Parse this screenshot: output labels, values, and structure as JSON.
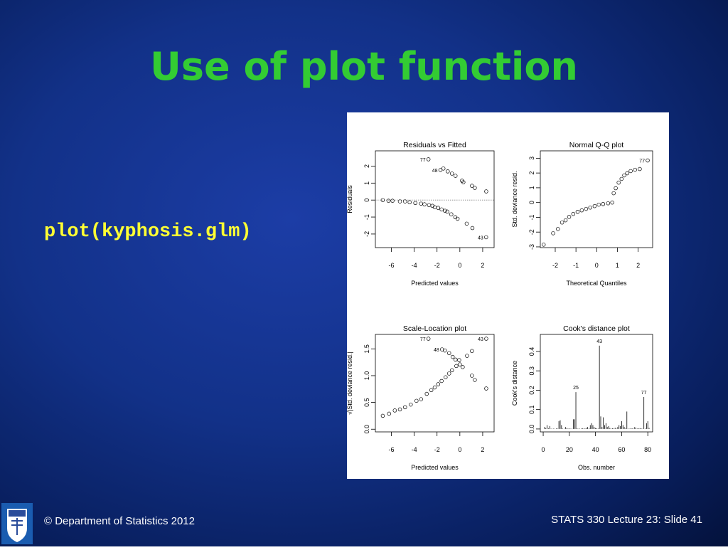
{
  "slide": {
    "title": "Use of plot function",
    "code": "plot(kyphosis.glm)",
    "footer_left": "© Department of Statistics 2012",
    "footer_right": "STATS 330 Lecture 23: Slide 41"
  },
  "chart_data": [
    {
      "type": "scatter",
      "title": "Residuals vs Fitted",
      "x_label": "Predicted values",
      "y_label": "Residuals",
      "xlim": [
        -7.4,
        3.0
      ],
      "ylim": [
        -2.8,
        2.9
      ],
      "xticks": [
        -6,
        -4,
        -2,
        0,
        2
      ],
      "yticks": [
        -2,
        -1,
        0,
        1,
        2
      ],
      "hline": 0,
      "x": [
        -2.75,
        -1.7,
        -1.44,
        -1.06,
        -0.69,
        -0.38,
        0.19,
        0.31,
        1.06,
        1.31,
        2.31,
        -6.75,
        -6.25,
        -5.9,
        -5.25,
        -4.8,
        -4.4,
        -3.9,
        -3.4,
        -3.1,
        -2.7,
        -2.4,
        -2.2,
        -1.9,
        -1.6,
        -1.3,
        -1.1,
        -0.75,
        -0.4,
        -0.2,
        0.6,
        1.1,
        2.3
      ],
      "values": [
        2.4,
        1.77,
        1.86,
        1.69,
        1.56,
        1.43,
        1.14,
        1.05,
        0.84,
        0.72,
        0.51,
        0,
        -0.04,
        -0.04,
        -0.08,
        -0.08,
        -0.13,
        -0.17,
        -0.21,
        -0.25,
        -0.3,
        -0.34,
        -0.42,
        -0.46,
        -0.55,
        -0.63,
        -0.68,
        -0.84,
        -1.01,
        -1.1,
        -1.39,
        -1.65,
        -2.19
      ],
      "labels": [
        "77",
        "48",
        null,
        null,
        null,
        null,
        null,
        null,
        null,
        null,
        null,
        null,
        null,
        null,
        null,
        null,
        null,
        null,
        null,
        null,
        null,
        null,
        null,
        null,
        null,
        null,
        null,
        null,
        null,
        null,
        null,
        null,
        "43"
      ]
    },
    {
      "type": "scatter",
      "title": "Normal Q-Q plot",
      "x_label": "Theoretical Quantiles",
      "y_label": "Std. deviance resid.",
      "xlim": [
        -2.72,
        2.7
      ],
      "ylim": [
        -3.05,
        3.5
      ],
      "xticks": [
        -2,
        -1,
        0,
        1,
        2
      ],
      "yticks": [
        -3,
        -2,
        -1,
        0,
        1,
        2,
        3
      ],
      "x": [
        -2.56,
        -2.1,
        -1.87,
        -1.67,
        -1.5,
        -1.33,
        -1.13,
        -0.92,
        -0.72,
        -0.51,
        -0.31,
        -0.1,
        0.1,
        0.31,
        0.55,
        0.75,
        0.82,
        0.92,
        1.06,
        1.2,
        1.33,
        1.47,
        1.64,
        1.85,
        2.08,
        2.46
      ],
      "values": [
        -2.85,
        -2.08,
        -1.79,
        -1.35,
        -1.2,
        -0.97,
        -0.77,
        -0.63,
        -0.53,
        -0.43,
        -0.34,
        -0.24,
        -0.14,
        -0.1,
        -0.05,
        0,
        0.63,
        0.97,
        1.35,
        1.6,
        1.84,
        1.98,
        2.13,
        2.22,
        2.27,
        2.85
      ],
      "labels": [
        null,
        null,
        null,
        null,
        null,
        null,
        null,
        null,
        null,
        null,
        null,
        null,
        null,
        null,
        null,
        null,
        null,
        null,
        null,
        null,
        null,
        null,
        null,
        null,
        null,
        "77"
      ]
    },
    {
      "type": "scatter",
      "title": "Scale-Location plot",
      "x_label": "Predicted values",
      "y_label": "√|Std. deviance resid.|",
      "xlim": [
        -7.4,
        3.0
      ],
      "ylim": [
        -0.05,
        1.77
      ],
      "xticks": [
        -6,
        -4,
        -2,
        0,
        2
      ],
      "yticks": [
        {
          "value": 0,
          "label": "0.0"
        },
        0.5,
        {
          "value": 1,
          "label": "1.0"
        },
        1.5
      ],
      "x": [
        -6.75,
        -6.2,
        -5.7,
        -5.25,
        -4.8,
        -4.3,
        -3.8,
        -3.4,
        -2.9,
        -2.5,
        -2.2,
        -1.9,
        -1.6,
        -1.25,
        -0.94,
        -0.69,
        -0.31,
        -0.06,
        -2.75,
        -1.56,
        -1.31,
        -0.94,
        -0.63,
        -0.38,
        0,
        0.25,
        0.63,
        1.06,
        1.06,
        1.31,
        2.31,
        2.31
      ],
      "values": [
        0.25,
        0.29,
        0.35,
        0.37,
        0.41,
        0.46,
        0.53,
        0.56,
        0.66,
        0.73,
        0.78,
        0.84,
        0.9,
        0.97,
        1.04,
        1.1,
        1.18,
        1.29,
        1.69,
        1.49,
        1.47,
        1.42,
        1.35,
        1.3,
        1.21,
        1.16,
        1.37,
        1.46,
        1.0,
        0.92,
        0.76,
        1.69
      ],
      "labels": [
        null,
        null,
        null,
        null,
        null,
        null,
        null,
        null,
        null,
        null,
        null,
        null,
        null,
        null,
        null,
        null,
        null,
        null,
        "77",
        "48",
        null,
        null,
        null,
        null,
        null,
        null,
        null,
        null,
        null,
        null,
        null,
        "43"
      ]
    },
    {
      "type": "bar",
      "title": "Cook's distance plot",
      "x_label": "Obs. number",
      "y_label": "Cook's distance",
      "xlim": [
        -2.2,
        83.7
      ],
      "ylim": [
        -0.015,
        0.488
      ],
      "xticks": [
        0,
        20,
        40,
        60,
        80
      ],
      "yticks": [
        {
          "value": 0,
          "label": "0.0"
        },
        0.1,
        0.2,
        0.3,
        0.4
      ],
      "x": [
        1,
        2,
        3,
        4,
        5,
        6,
        7,
        8,
        9,
        10,
        11,
        12,
        13,
        14,
        15,
        16,
        17,
        18,
        19,
        20,
        21,
        22,
        23,
        24,
        25,
        26,
        27,
        28,
        29,
        30,
        31,
        32,
        33,
        34,
        35,
        36,
        37,
        38,
        39,
        40,
        41,
        42,
        43,
        44,
        45,
        46,
        47,
        48,
        49,
        50,
        51,
        52,
        53,
        54,
        55,
        56,
        57,
        58,
        59,
        60,
        61,
        62,
        63,
        64,
        65,
        66,
        67,
        68,
        69,
        70,
        71,
        72,
        73,
        74,
        75,
        76,
        77,
        78,
        79,
        80,
        81
      ],
      "values": [
        0.01,
        0.005,
        0.02,
        0.003,
        0.015,
        0.002,
        0.001,
        0.002,
        0.001,
        0.003,
        0.002,
        0.04,
        0.045,
        0.02,
        0.002,
        0.001,
        0.01,
        0.005,
        0.002,
        0.003,
        0.001,
        0.002,
        0.05,
        0.05,
        0.19,
        0.003,
        0.001,
        0.002,
        0.002,
        0.004,
        0.002,
        0.003,
        0.006,
        0.01,
        0.004,
        0.02,
        0.03,
        0.02,
        0.01,
        0.005,
        0.004,
        0.002,
        0.43,
        0.065,
        0.01,
        0.06,
        0.02,
        0.03,
        0.01,
        0.015,
        0.005,
        0.002,
        0.004,
        0.003,
        0.006,
        0.002,
        0.01,
        0.02,
        0.015,
        0.04,
        0.02,
        0.01,
        0.003,
        0.09,
        0.002,
        0.001,
        0.004,
        0.003,
        0.002,
        0.01,
        0.006,
        0.002,
        0.003,
        0.004,
        0.003,
        0.001,
        0.165,
        0.002,
        0.03,
        0.04,
        0.005
      ],
      "labels": [
        null,
        null,
        null,
        null,
        null,
        null,
        null,
        null,
        null,
        null,
        null,
        null,
        null,
        null,
        null,
        null,
        null,
        null,
        null,
        null,
        null,
        null,
        null,
        null,
        "25",
        null,
        null,
        null,
        null,
        null,
        null,
        null,
        null,
        null,
        null,
        null,
        null,
        null,
        null,
        null,
        null,
        null,
        "43",
        null,
        null,
        null,
        null,
        null,
        null,
        null,
        null,
        null,
        null,
        null,
        null,
        null,
        null,
        null,
        null,
        null,
        null,
        null,
        null,
        null,
        null,
        null,
        null,
        null,
        null,
        null,
        null,
        null,
        null,
        null,
        null,
        null,
        "77",
        null,
        null,
        null,
        null
      ]
    }
  ]
}
